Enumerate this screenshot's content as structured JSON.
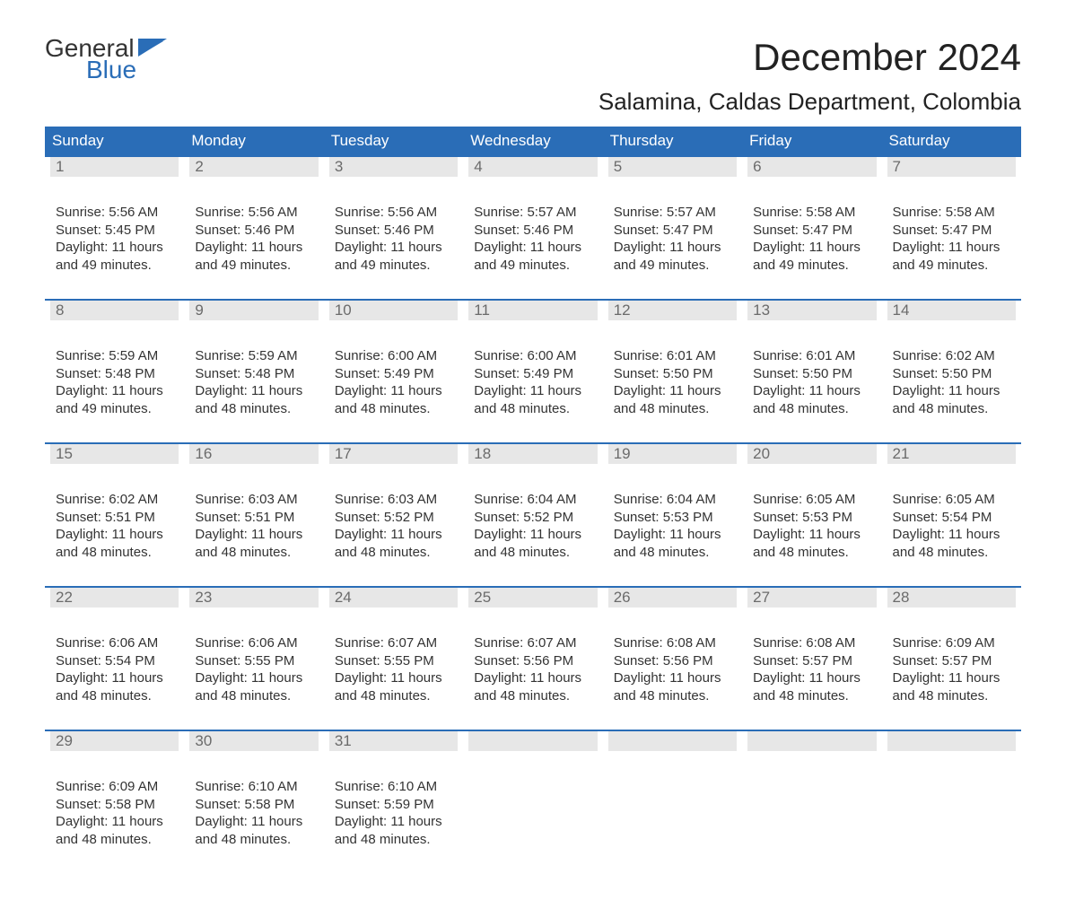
{
  "logo": {
    "word1": "General",
    "word2": "Blue",
    "flag_color": "#2a6db7",
    "word1_color": "#333333",
    "word2_color": "#2a6db7"
  },
  "title": "December 2024",
  "subtitle": "Salamina, Caldas Department, Colombia",
  "colors": {
    "header_bg": "#2a6db7",
    "header_text": "#ffffff",
    "daynum_bg": "#e7e7e7",
    "daynum_text": "#6b6b6b",
    "body_text": "#333333",
    "rule": "#2a6db7",
    "page_bg": "#ffffff"
  },
  "typography": {
    "title_size": 42,
    "subtitle_size": 26,
    "header_size": 17,
    "body_size": 15
  },
  "weekdays": [
    "Sunday",
    "Monday",
    "Tuesday",
    "Wednesday",
    "Thursday",
    "Friday",
    "Saturday"
  ],
  "labels": {
    "sunrise": "Sunrise:",
    "sunset": "Sunset:",
    "daylight": "Daylight:"
  },
  "weeks": [
    [
      {
        "n": "1",
        "sunrise": "5:56 AM",
        "sunset": "5:45 PM",
        "day": "11 hours",
        "day2": "and 49 minutes."
      },
      {
        "n": "2",
        "sunrise": "5:56 AM",
        "sunset": "5:46 PM",
        "day": "11 hours",
        "day2": "and 49 minutes."
      },
      {
        "n": "3",
        "sunrise": "5:56 AM",
        "sunset": "5:46 PM",
        "day": "11 hours",
        "day2": "and 49 minutes."
      },
      {
        "n": "4",
        "sunrise": "5:57 AM",
        "sunset": "5:46 PM",
        "day": "11 hours",
        "day2": "and 49 minutes."
      },
      {
        "n": "5",
        "sunrise": "5:57 AM",
        "sunset": "5:47 PM",
        "day": "11 hours",
        "day2": "and 49 minutes."
      },
      {
        "n": "6",
        "sunrise": "5:58 AM",
        "sunset": "5:47 PM",
        "day": "11 hours",
        "day2": "and 49 minutes."
      },
      {
        "n": "7",
        "sunrise": "5:58 AM",
        "sunset": "5:47 PM",
        "day": "11 hours",
        "day2": "and 49 minutes."
      }
    ],
    [
      {
        "n": "8",
        "sunrise": "5:59 AM",
        "sunset": "5:48 PM",
        "day": "11 hours",
        "day2": "and 49 minutes."
      },
      {
        "n": "9",
        "sunrise": "5:59 AM",
        "sunset": "5:48 PM",
        "day": "11 hours",
        "day2": "and 48 minutes."
      },
      {
        "n": "10",
        "sunrise": "6:00 AM",
        "sunset": "5:49 PM",
        "day": "11 hours",
        "day2": "and 48 minutes."
      },
      {
        "n": "11",
        "sunrise": "6:00 AM",
        "sunset": "5:49 PM",
        "day": "11 hours",
        "day2": "and 48 minutes."
      },
      {
        "n": "12",
        "sunrise": "6:01 AM",
        "sunset": "5:50 PM",
        "day": "11 hours",
        "day2": "and 48 minutes."
      },
      {
        "n": "13",
        "sunrise": "6:01 AM",
        "sunset": "5:50 PM",
        "day": "11 hours",
        "day2": "and 48 minutes."
      },
      {
        "n": "14",
        "sunrise": "6:02 AM",
        "sunset": "5:50 PM",
        "day": "11 hours",
        "day2": "and 48 minutes."
      }
    ],
    [
      {
        "n": "15",
        "sunrise": "6:02 AM",
        "sunset": "5:51 PM",
        "day": "11 hours",
        "day2": "and 48 minutes."
      },
      {
        "n": "16",
        "sunrise": "6:03 AM",
        "sunset": "5:51 PM",
        "day": "11 hours",
        "day2": "and 48 minutes."
      },
      {
        "n": "17",
        "sunrise": "6:03 AM",
        "sunset": "5:52 PM",
        "day": "11 hours",
        "day2": "and 48 minutes."
      },
      {
        "n": "18",
        "sunrise": "6:04 AM",
        "sunset": "5:52 PM",
        "day": "11 hours",
        "day2": "and 48 minutes."
      },
      {
        "n": "19",
        "sunrise": "6:04 AM",
        "sunset": "5:53 PM",
        "day": "11 hours",
        "day2": "and 48 minutes."
      },
      {
        "n": "20",
        "sunrise": "6:05 AM",
        "sunset": "5:53 PM",
        "day": "11 hours",
        "day2": "and 48 minutes."
      },
      {
        "n": "21",
        "sunrise": "6:05 AM",
        "sunset": "5:54 PM",
        "day": "11 hours",
        "day2": "and 48 minutes."
      }
    ],
    [
      {
        "n": "22",
        "sunrise": "6:06 AM",
        "sunset": "5:54 PM",
        "day": "11 hours",
        "day2": "and 48 minutes."
      },
      {
        "n": "23",
        "sunrise": "6:06 AM",
        "sunset": "5:55 PM",
        "day": "11 hours",
        "day2": "and 48 minutes."
      },
      {
        "n": "24",
        "sunrise": "6:07 AM",
        "sunset": "5:55 PM",
        "day": "11 hours",
        "day2": "and 48 minutes."
      },
      {
        "n": "25",
        "sunrise": "6:07 AM",
        "sunset": "5:56 PM",
        "day": "11 hours",
        "day2": "and 48 minutes."
      },
      {
        "n": "26",
        "sunrise": "6:08 AM",
        "sunset": "5:56 PM",
        "day": "11 hours",
        "day2": "and 48 minutes."
      },
      {
        "n": "27",
        "sunrise": "6:08 AM",
        "sunset": "5:57 PM",
        "day": "11 hours",
        "day2": "and 48 minutes."
      },
      {
        "n": "28",
        "sunrise": "6:09 AM",
        "sunset": "5:57 PM",
        "day": "11 hours",
        "day2": "and 48 minutes."
      }
    ],
    [
      {
        "n": "29",
        "sunrise": "6:09 AM",
        "sunset": "5:58 PM",
        "day": "11 hours",
        "day2": "and 48 minutes."
      },
      {
        "n": "30",
        "sunrise": "6:10 AM",
        "sunset": "5:58 PM",
        "day": "11 hours",
        "day2": "and 48 minutes."
      },
      {
        "n": "31",
        "sunrise": "6:10 AM",
        "sunset": "5:59 PM",
        "day": "11 hours",
        "day2": "and 48 minutes."
      },
      {
        "empty": true
      },
      {
        "empty": true
      },
      {
        "empty": true
      },
      {
        "empty": true
      }
    ]
  ]
}
